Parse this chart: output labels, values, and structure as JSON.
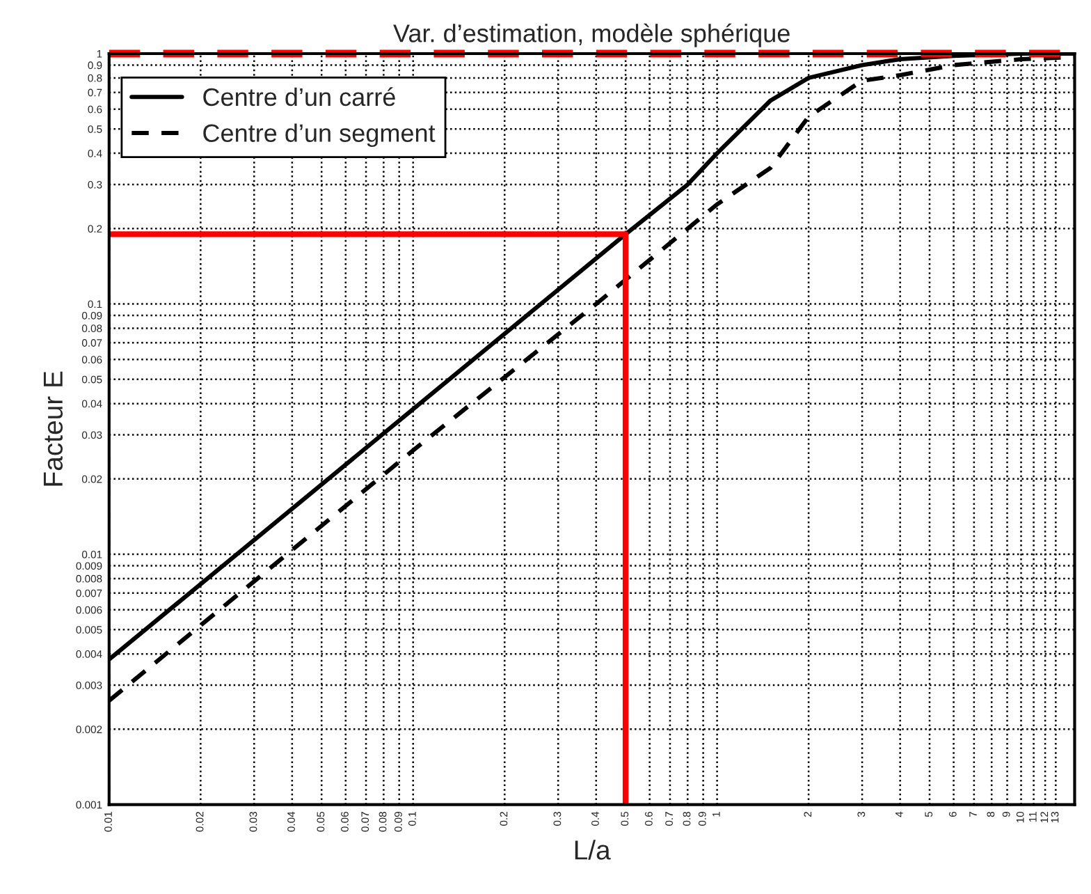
{
  "chart_data": {
    "type": "line",
    "title": "Var. d’estimation, modèle sphérique",
    "xlabel": "L/a",
    "ylabel": "Facteur E",
    "log": "xy",
    "grid": true,
    "legend": "top left",
    "xlim": [
      0.01,
      15
    ],
    "ylim": [
      0.001,
      1
    ],
    "xticks": [
      0.01,
      0.02,
      0.03,
      0.04,
      0.05,
      0.06,
      0.07,
      0.08,
      0.09,
      0.1,
      0.2,
      0.3,
      0.4,
      0.5,
      0.6,
      0.7,
      0.8,
      0.9,
      1,
      2,
      3,
      4,
      5,
      6,
      7,
      8,
      9,
      10,
      11,
      12,
      13
    ],
    "yticks": [
      0.001,
      0.002,
      0.003,
      0.004,
      0.005,
      0.006,
      0.007,
      0.008,
      0.009,
      0.01,
      0.02,
      0.03,
      0.04,
      0.05,
      0.06,
      0.07,
      0.08,
      0.09,
      0.1,
      0.2,
      0.3,
      0.4,
      0.5,
      0.6,
      0.7,
      0.8,
      0.9,
      1
    ],
    "series": [
      {
        "name": "Centre d’un carré",
        "color": "#000000",
        "line_style": "solid",
        "x": [
          0.01,
          0.1,
          0.5,
          0.8,
          1,
          1.5,
          2,
          3,
          4,
          6,
          10,
          15
        ],
        "values": [
          0.0038,
          0.038,
          0.19,
          0.3,
          0.4,
          0.65,
          0.8,
          0.9,
          0.95,
          0.98,
          1,
          1
        ]
      },
      {
        "name": "Centre d’un segment",
        "color": "#000000",
        "line_style": "dashed",
        "x": [
          0.01,
          0.1,
          0.4,
          1,
          1.5,
          2,
          3,
          4,
          6,
          10,
          15
        ],
        "values": [
          0.0026,
          0.026,
          0.1,
          0.25,
          0.35,
          0.56,
          0.78,
          0.82,
          0.9,
          0.95,
          0.97
        ]
      },
      {
        "color": "#ff0000",
        "line_style": "solid",
        "x": [
          0.01,
          0.5,
          0.5
        ],
        "values": [
          0.19,
          0.19,
          0.001
        ]
      }
    ],
    "ref_lines": [
      {
        "axis": "y",
        "value": 1,
        "color": "#ff0000",
        "line_style": "dashed"
      }
    ]
  }
}
